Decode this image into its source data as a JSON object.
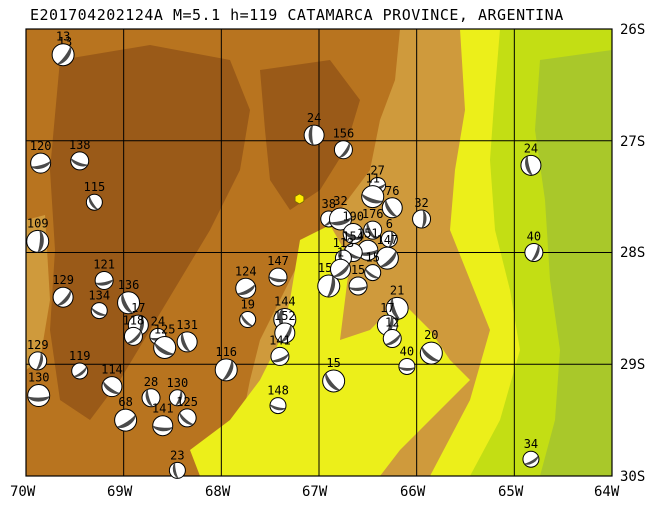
{
  "title": "E201704202124A M=5.1 h=119 CATAMARCA PROVINCE, ARGENTINA",
  "map": {
    "lat_labels": [
      "26S",
      "27S",
      "28S",
      "29S",
      "30S"
    ],
    "lon_labels": [
      "70W",
      "69W",
      "68W",
      "67W",
      "66W",
      "65W",
      "64W"
    ],
    "colors": {
      "dark_brown": "#9a5a18",
      "brown": "#b8741f",
      "tan": "#cf9a3c",
      "yellow": "#ecef1a",
      "lime": "#c3de14",
      "green": "#a9c82a",
      "beachball_dark": "#4a4a4a",
      "beachball_light": "#ffffff",
      "target_event": "#ffeb00"
    }
  },
  "events": [
    {
      "depth": "13",
      "lon": -69.6,
      "lat": -26.25
    },
    {
      "depth": "13",
      "lon": -69.62,
      "lat": -26.23
    },
    {
      "depth": "120",
      "lon": -69.85,
      "lat": -27.2
    },
    {
      "depth": "138",
      "lon": -69.45,
      "lat": -27.18
    },
    {
      "depth": "115",
      "lon": -69.3,
      "lat": -27.55
    },
    {
      "depth": "109",
      "lon": -69.88,
      "lat": -27.9
    },
    {
      "depth": "129",
      "lon": -69.62,
      "lat": -28.4
    },
    {
      "depth": "121",
      "lon": -69.2,
      "lat": -28.25
    },
    {
      "depth": "134",
      "lon": -69.25,
      "lat": -28.52
    },
    {
      "depth": "136",
      "lon": -68.95,
      "lat": -28.45
    },
    {
      "depth": "17",
      "lon": -68.85,
      "lat": -28.65
    },
    {
      "depth": "118",
      "lon": -68.9,
      "lat": -28.75
    },
    {
      "depth": "24",
      "lon": -68.65,
      "lat": -28.75
    },
    {
      "depth": "125",
      "lon": -68.58,
      "lat": -28.85
    },
    {
      "depth": "131",
      "lon": -68.35,
      "lat": -28.8
    },
    {
      "depth": "129",
      "lon": -69.88,
      "lat": -28.97
    },
    {
      "depth": "119",
      "lon": -69.45,
      "lat": -29.06
    },
    {
      "depth": "130",
      "lon": -69.87,
      "lat": -29.28
    },
    {
      "depth": "114",
      "lon": -69.12,
      "lat": -29.2
    },
    {
      "depth": "28",
      "lon": -68.72,
      "lat": -29.3
    },
    {
      "depth": "130",
      "lon": -68.45,
      "lat": -29.3
    },
    {
      "depth": "68",
      "lon": -68.98,
      "lat": -29.5
    },
    {
      "depth": "141",
      "lon": -68.6,
      "lat": -29.55
    },
    {
      "depth": "125",
      "lon": -68.35,
      "lat": -29.48
    },
    {
      "depth": "23",
      "lon": -68.45,
      "lat": -29.95
    },
    {
      "depth": "116",
      "lon": -67.95,
      "lat": -29.05
    },
    {
      "depth": "124",
      "lon": -67.75,
      "lat": -28.32
    },
    {
      "depth": "147",
      "lon": -67.42,
      "lat": -28.22
    },
    {
      "depth": "19",
      "lon": -67.73,
      "lat": -28.6
    },
    {
      "depth": "144",
      "lon": -67.35,
      "lat": -28.6
    },
    {
      "depth": "152",
      "lon": -67.35,
      "lat": -28.72
    },
    {
      "depth": "141",
      "lon": -67.4,
      "lat": -28.93
    },
    {
      "depth": "148",
      "lon": -67.42,
      "lat": -29.37
    },
    {
      "depth": "15",
      "lon": -66.85,
      "lat": -29.15
    },
    {
      "depth": "24",
      "lon": -67.05,
      "lat": -26.95
    },
    {
      "depth": "156",
      "lon": -66.75,
      "lat": -27.08
    },
    {
      "depth": "27",
      "lon": -66.4,
      "lat": -27.4
    },
    {
      "depth": "11",
      "lon": -66.45,
      "lat": -27.5
    },
    {
      "depth": "76",
      "lon": -66.25,
      "lat": -27.6
    },
    {
      "depth": "32",
      "lon": -65.95,
      "lat": -27.7
    },
    {
      "depth": "38",
      "lon": -66.9,
      "lat": -27.7
    },
    {
      "depth": "32",
      "lon": -66.78,
      "lat": -27.7
    },
    {
      "depth": "190",
      "lon": -66.65,
      "lat": -27.83
    },
    {
      "depth": "176",
      "lon": -66.45,
      "lat": -27.8
    },
    {
      "depth": "6",
      "lon": -66.28,
      "lat": -27.88
    },
    {
      "depth": "147",
      "lon": -66.3,
      "lat": -28.05
    },
    {
      "depth": "151",
      "lon": -66.5,
      "lat": -27.98
    },
    {
      "depth": "154",
      "lon": -66.65,
      "lat": -28.0
    },
    {
      "depth": "113",
      "lon": -66.75,
      "lat": -28.05
    },
    {
      "depth": "157",
      "lon": -66.9,
      "lat": -28.3
    },
    {
      "depth": "1",
      "lon": -66.78,
      "lat": -28.15
    },
    {
      "depth": "15",
      "lon": -66.6,
      "lat": -28.3
    },
    {
      "depth": "15",
      "lon": -66.45,
      "lat": -28.18
    },
    {
      "depth": "21",
      "lon": -66.2,
      "lat": -28.5
    },
    {
      "depth": "17",
      "lon": -66.3,
      "lat": -28.65
    },
    {
      "depth": "12",
      "lon": -66.25,
      "lat": -28.77
    },
    {
      "depth": "40",
      "lon": -66.1,
      "lat": -29.02
    },
    {
      "depth": "20",
      "lon": -65.85,
      "lat": -28.9
    },
    {
      "depth": "24",
      "lon": -64.83,
      "lat": -27.22
    },
    {
      "depth": "40",
      "lon": -64.8,
      "lat": -28.0
    },
    {
      "depth": "34",
      "lon": -64.83,
      "lat": -29.85
    }
  ],
  "target": {
    "lon": -67.2,
    "lat": -27.52
  }
}
